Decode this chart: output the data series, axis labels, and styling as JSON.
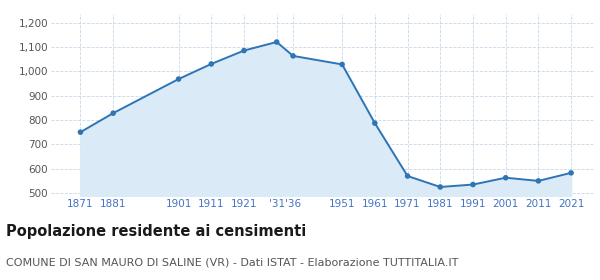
{
  "years": [
    1871,
    1881,
    1901,
    1911,
    1921,
    1931,
    1936,
    1951,
    1961,
    1971,
    1981,
    1991,
    2001,
    2011,
    2021
  ],
  "population": [
    750,
    828,
    968,
    1030,
    1085,
    1120,
    1063,
    1028,
    787,
    570,
    525,
    535,
    563,
    550,
    583
  ],
  "x_tick_labels": [
    "1871",
    "1881",
    "1901",
    "1911",
    "1921",
    "'31",
    "'36",
    "1951",
    "1961",
    "1971",
    "1981",
    "1991",
    "2001",
    "2011",
    "2021"
  ],
  "y_ticks": [
    500,
    600,
    700,
    800,
    900,
    1000,
    1100,
    1200
  ],
  "ylim": [
    488,
    1235
  ],
  "xlim": [
    1862,
    2028
  ],
  "line_color": "#2e75b6",
  "fill_color": "#daeaf7",
  "marker_color": "#2e75b6",
  "grid_color": "#c8d8e8",
  "background_color": "#ffffff",
  "title": "Popolazione residente ai censimenti",
  "subtitle": "COMUNE DI SAN MAURO DI SALINE (VR) - Dati ISTAT - Elaborazione TUTTITALIA.IT",
  "title_fontsize": 10.5,
  "subtitle_fontsize": 8,
  "tick_label_color": "#4472c4",
  "ytick_label_color": "#555555",
  "tick_label_fontsize": 7.5,
  "marker_size": 16
}
